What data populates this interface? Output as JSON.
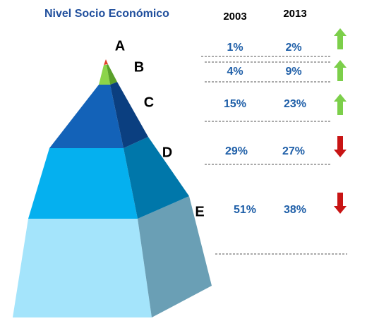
{
  "header": {
    "title": "Nivel Socio Económico",
    "years": [
      "2003",
      "2013"
    ]
  },
  "rows": [
    {
      "level": "A",
      "values": [
        "1%",
        "2%"
      ],
      "trend": "up"
    },
    {
      "level": "B",
      "values": [
        "4%",
        "9%"
      ],
      "trend": "up"
    },
    {
      "level": "C",
      "values": [
        "15%",
        "23%"
      ],
      "trend": "up"
    },
    {
      "level": "D",
      "values": [
        "29%",
        "27%"
      ],
      "trend": "down"
    },
    {
      "level": "E",
      "values": [
        "51%",
        "38%"
      ],
      "trend": "down"
    }
  ]
}
